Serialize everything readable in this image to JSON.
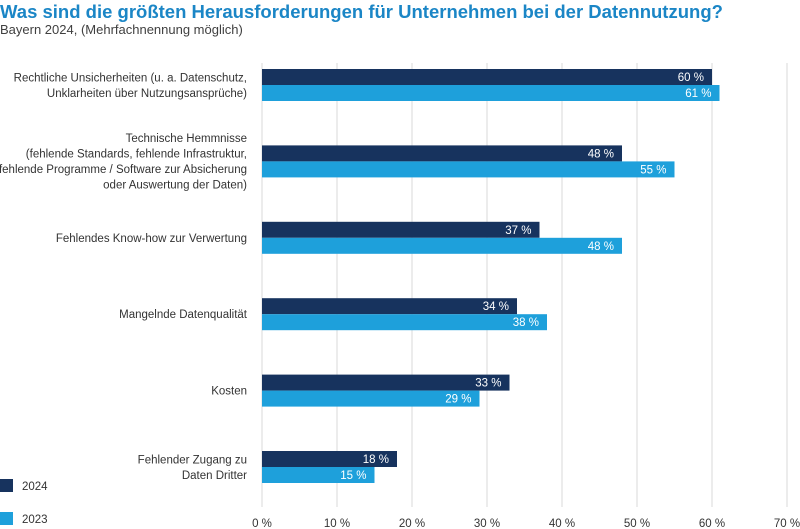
{
  "header": {
    "title": "Was sind die größten Herausforderungen für Unternehmen bei der Datennutzung?",
    "subtitle": "Bayern 2024, (Mehrfachnennung möglich)"
  },
  "colors": {
    "series_2024": "#17335e",
    "series_2023": "#1ea0db",
    "grid": "#d9d9d9",
    "title": "#1b86c6"
  },
  "chart_data": {
    "type": "bar",
    "orientation": "horizontal",
    "title": "Was sind die größten Herausforderungen für Unternehmen bei der Datennutzung?",
    "subtitle": "Bayern 2024, (Mehrfachnennung möglich)",
    "categories": [
      [
        "Rechtliche Unsicherheiten (u. a. Datenschutz,",
        "Unklarheiten über Nutzungsansprüche)"
      ],
      [
        "Technische Hemmnisse",
        "(fehlende Standards, fehlende Infrastruktur,",
        "fehlende Programme / Software zur Absicherung",
        "oder Auswertung der Daten)"
      ],
      [
        "Fehlendes Know-how zur Verwertung"
      ],
      [
        "Mangelnde Datenqualität"
      ],
      [
        "Kosten"
      ],
      [
        "Fehlender Zugang zu",
        "Daten Dritter"
      ]
    ],
    "series": [
      {
        "name": "2024",
        "color": "#17335e",
        "values": [
          60,
          48,
          37,
          34,
          33,
          18
        ],
        "labels": [
          "60 %",
          "48 %",
          "37 %",
          "34 %",
          "33 %",
          "18 %"
        ]
      },
      {
        "name": "2023",
        "color": "#1ea0db",
        "values": [
          61,
          55,
          48,
          38,
          29,
          15
        ],
        "labels": [
          "61 %",
          "55 %",
          "48 %",
          "38 %",
          "29 %",
          "15 %"
        ]
      }
    ],
    "xlim": [
      0,
      70
    ],
    "xticks": [
      0,
      10,
      20,
      30,
      40,
      50,
      60,
      70
    ],
    "xtick_labels": [
      "0 %",
      "10 %",
      "20 %",
      "30 %",
      "40 %",
      "50 %",
      "60 %",
      "70 %"
    ],
    "xlabel": "",
    "ylabel": "",
    "grid": true,
    "legend": {
      "position": "bottom-left",
      "entries": [
        "2024",
        "2023"
      ]
    }
  }
}
